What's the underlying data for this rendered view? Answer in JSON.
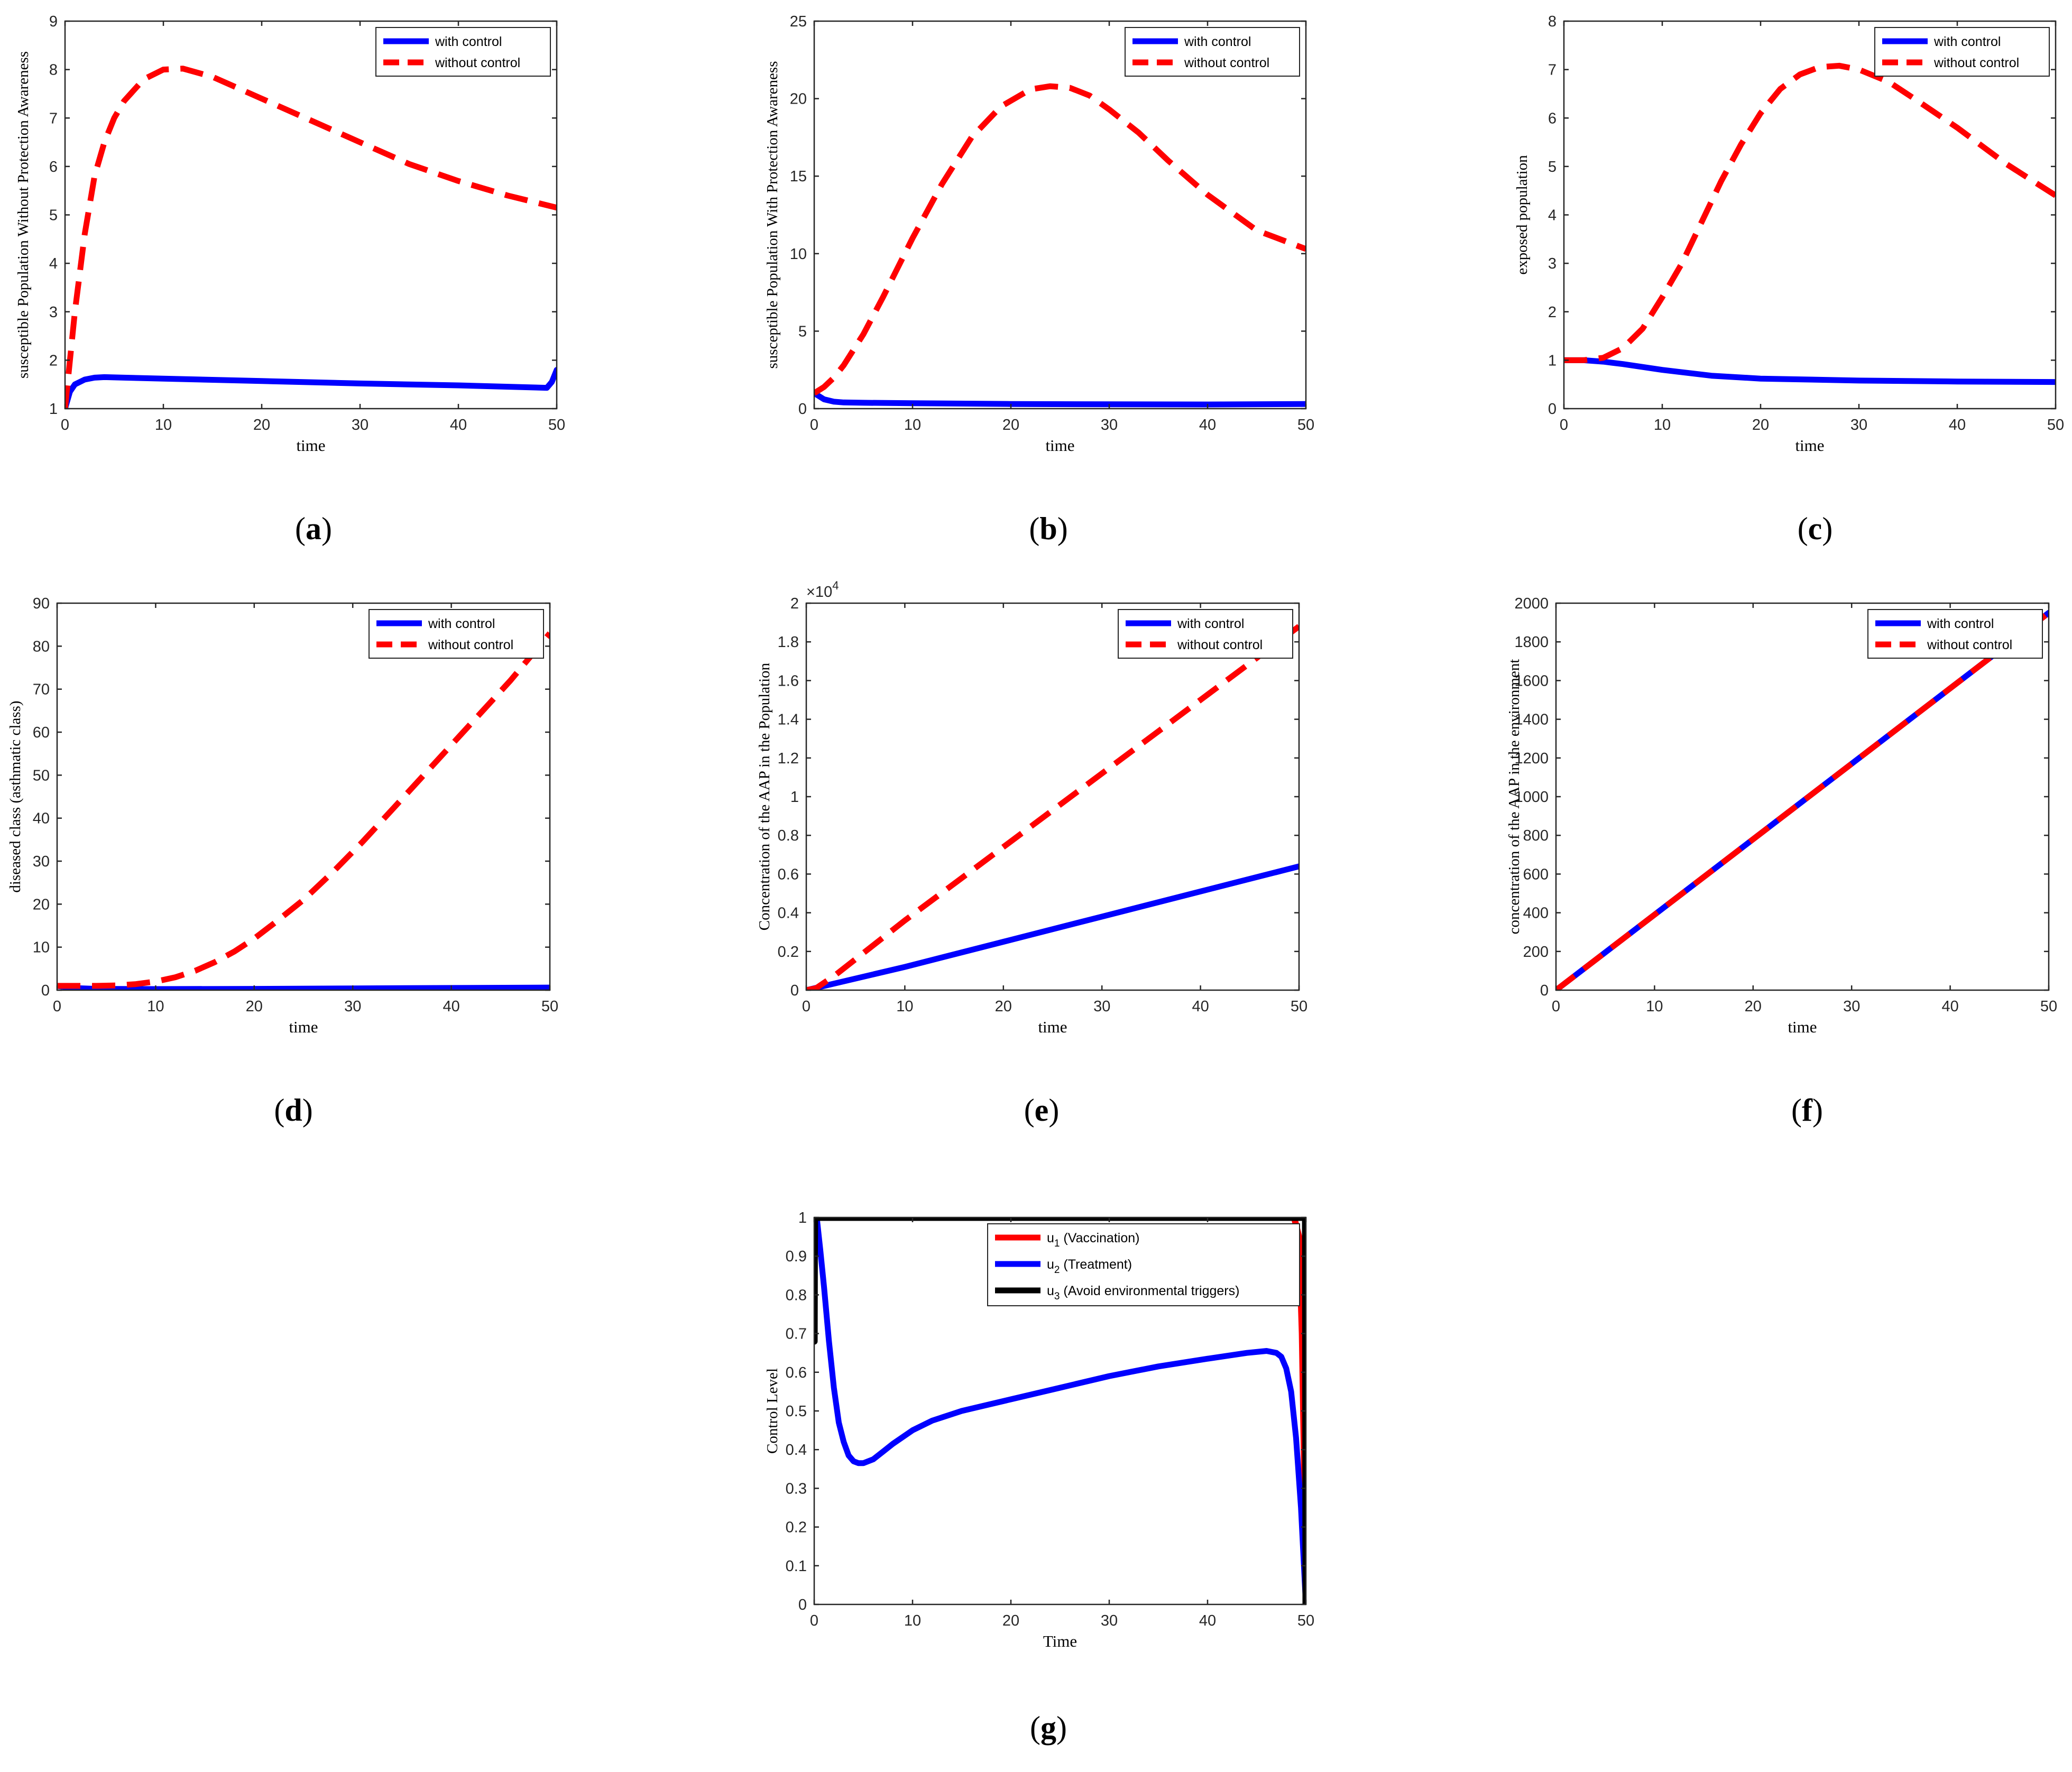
{
  "figure": {
    "colors": {
      "with": "#0000ff",
      "without": "#ff0000",
      "u3": "#000000",
      "axis": "#262626"
    }
  },
  "chart_data": [
    {
      "id": "a",
      "type": "line",
      "caption_letter": "a",
      "xlabel": "time",
      "ylabel": "susceptible Population Without Protection Awareness",
      "xlim": [
        0,
        50
      ],
      "ylim": [
        1,
        9
      ],
      "xticks": [
        "0",
        "10",
        "20",
        "30",
        "40",
        "50"
      ],
      "yticks": [
        "1",
        "2",
        "3",
        "4",
        "5",
        "6",
        "7",
        "8",
        "9"
      ],
      "legend": {
        "placement": "top-right",
        "entries": [
          "with control",
          "without control"
        ]
      },
      "series": [
        {
          "name": "with control",
          "color": "#0000ff",
          "style": "solid",
          "x": [
            0,
            0.5,
            1,
            2,
            3,
            4,
            6,
            10,
            20,
            30,
            40,
            49,
            49.5,
            50
          ],
          "y": [
            1.0,
            1.35,
            1.5,
            1.6,
            1.64,
            1.65,
            1.64,
            1.62,
            1.57,
            1.52,
            1.48,
            1.43,
            1.55,
            1.8
          ]
        },
        {
          "name": "without control",
          "color": "#ff0000",
          "style": "dashed",
          "x": [
            0,
            0.5,
            1,
            2,
            3,
            4,
            5,
            6,
            8,
            10,
            12,
            15,
            20,
            25,
            30,
            35,
            40,
            45,
            50
          ],
          "y": [
            1.0,
            2.0,
            3.0,
            4.6,
            5.8,
            6.5,
            7.0,
            7.35,
            7.8,
            8.0,
            8.02,
            7.85,
            7.4,
            6.95,
            6.5,
            6.05,
            5.7,
            5.4,
            5.15
          ]
        }
      ]
    },
    {
      "id": "b",
      "type": "line",
      "caption_letter": "b",
      "xlabel": "time",
      "ylabel": "susceptible Population With Protection Awareness",
      "xlim": [
        0,
        50
      ],
      "ylim": [
        0,
        25
      ],
      "xticks": [
        "0",
        "10",
        "20",
        "30",
        "40",
        "50"
      ],
      "yticks": [
        "0",
        "5",
        "10",
        "15",
        "20",
        "25"
      ],
      "legend": {
        "placement": "top-right",
        "entries": [
          "with control",
          "without control"
        ]
      },
      "series": [
        {
          "name": "with control",
          "color": "#0000ff",
          "style": "solid",
          "x": [
            0,
            0.5,
            1,
            2,
            3,
            5,
            10,
            20,
            30,
            40,
            50
          ],
          "y": [
            1.0,
            0.8,
            0.6,
            0.45,
            0.4,
            0.38,
            0.35,
            0.3,
            0.28,
            0.27,
            0.3
          ]
        },
        {
          "name": "without control",
          "color": "#ff0000",
          "style": "dashed",
          "x": [
            0,
            1,
            2,
            3,
            5,
            7,
            10,
            13,
            16,
            19,
            22,
            24,
            26,
            28,
            30,
            33,
            36,
            40,
            45,
            50
          ],
          "y": [
            1.0,
            1.4,
            2.0,
            2.8,
            4.8,
            7.2,
            11.0,
            14.5,
            17.5,
            19.5,
            20.6,
            20.8,
            20.7,
            20.2,
            19.3,
            17.8,
            16.0,
            13.8,
            11.5,
            10.3
          ]
        }
      ]
    },
    {
      "id": "c",
      "type": "line",
      "caption_letter": "c",
      "xlabel": "time",
      "ylabel": "exposed population",
      "xlim": [
        0,
        50
      ],
      "ylim": [
        0,
        8
      ],
      "xticks": [
        "0",
        "10",
        "20",
        "30",
        "40",
        "50"
      ],
      "yticks": [
        "0",
        "1",
        "2",
        "3",
        "4",
        "5",
        "6",
        "7",
        "8"
      ],
      "legend": {
        "placement": "top-right",
        "entries": [
          "with control",
          "without control"
        ]
      },
      "series": [
        {
          "name": "with control",
          "color": "#0000ff",
          "style": "solid",
          "x": [
            0,
            2,
            4,
            6,
            8,
            10,
            15,
            20,
            25,
            30,
            40,
            50
          ],
          "y": [
            1.0,
            1.0,
            0.97,
            0.92,
            0.86,
            0.8,
            0.68,
            0.62,
            0.6,
            0.58,
            0.56,
            0.55
          ]
        },
        {
          "name": "without control",
          "color": "#ff0000",
          "style": "dashed",
          "x": [
            0,
            2,
            4,
            6,
            8,
            10,
            12,
            14,
            16,
            18,
            20,
            22,
            24,
            26,
            28,
            30,
            33,
            36,
            40,
            45,
            50
          ],
          "y": [
            1.0,
            1.0,
            1.05,
            1.25,
            1.65,
            2.3,
            3.0,
            3.85,
            4.7,
            5.45,
            6.1,
            6.6,
            6.9,
            7.05,
            7.08,
            7.0,
            6.75,
            6.35,
            5.8,
            5.05,
            4.4
          ]
        }
      ]
    },
    {
      "id": "d",
      "type": "line",
      "caption_letter": "d",
      "xlabel": "time",
      "ylabel": "diseased class (asthmatic class)",
      "xlim": [
        0,
        50
      ],
      "ylim": [
        0,
        90
      ],
      "xticks": [
        "0",
        "10",
        "20",
        "30",
        "40",
        "50"
      ],
      "yticks": [
        "0",
        "10",
        "20",
        "30",
        "40",
        "50",
        "60",
        "70",
        "80",
        "90"
      ],
      "legend": {
        "placement": "top-right",
        "entries": [
          "with control",
          "without control"
        ]
      },
      "series": [
        {
          "name": "with control",
          "color": "#0000ff",
          "style": "solid",
          "x": [
            0,
            1,
            2,
            4,
            10,
            20,
            30,
            40,
            50
          ],
          "y": [
            1.0,
            0.7,
            0.45,
            0.3,
            0.25,
            0.3,
            0.4,
            0.5,
            0.6
          ]
        },
        {
          "name": "without control",
          "color": "#ff0000",
          "style": "dashed",
          "x": [
            0,
            2,
            4,
            6,
            8,
            10,
            12,
            14,
            16,
            18,
            20,
            22,
            25,
            28,
            31,
            34,
            37,
            40,
            43,
            46,
            48,
            50
          ],
          "y": [
            1.0,
            1.0,
            1.0,
            1.1,
            1.4,
            2.0,
            3.0,
            4.5,
            6.5,
            9.0,
            12.0,
            15.5,
            21.0,
            27.5,
            34.5,
            42.0,
            49.5,
            57.0,
            64.5,
            72.0,
            77.5,
            83.0
          ]
        }
      ]
    },
    {
      "id": "e",
      "type": "line",
      "caption_letter": "e",
      "xlabel": "time",
      "ylabel": "Concentration of the AAP in the Population",
      "xlim": [
        0,
        50
      ],
      "ylim": [
        0,
        2
      ],
      "exponent_base": "×10",
      "exponent_power": "4",
      "xticks": [
        "0",
        "10",
        "20",
        "30",
        "40",
        "50"
      ],
      "yticks": [
        "0",
        "0.2",
        "0.4",
        "0.6",
        "0.8",
        "1",
        "1.2",
        "1.4",
        "1.6",
        "1.8",
        "2"
      ],
      "legend": {
        "placement": "top-right",
        "entries": [
          "with control",
          "without control"
        ]
      },
      "series": [
        {
          "name": "with control",
          "color": "#0000ff",
          "style": "solid",
          "x": [
            0,
            10,
            20,
            30,
            40,
            50
          ],
          "y": [
            0,
            0.12,
            0.25,
            0.38,
            0.51,
            0.64
          ]
        },
        {
          "name": "without control",
          "color": "#ff0000",
          "style": "dashed",
          "x": [
            0,
            1,
            3,
            10,
            20,
            30,
            40,
            50
          ],
          "y": [
            0,
            0.01,
            0.08,
            0.36,
            0.74,
            1.12,
            1.5,
            1.88
          ]
        }
      ]
    },
    {
      "id": "f",
      "type": "line",
      "caption_letter": "f",
      "xlabel": "time",
      "ylabel": "concentration of the AAP in the environment",
      "xlim": [
        0,
        50
      ],
      "ylim": [
        0,
        2000
      ],
      "xticks": [
        "0",
        "10",
        "20",
        "30",
        "40",
        "50"
      ],
      "yticks": [
        "0",
        "200",
        "400",
        "600",
        "800",
        "1000",
        "1200",
        "1400",
        "1600",
        "1800",
        "2000"
      ],
      "legend": {
        "placement": "top-right",
        "entries": [
          "with control",
          "without control"
        ]
      },
      "series": [
        {
          "name": "with control",
          "color": "#0000ff",
          "style": "solid",
          "x": [
            0,
            50
          ],
          "y": [
            0,
            1950
          ]
        },
        {
          "name": "without control",
          "color": "#ff0000",
          "style": "dashed",
          "x": [
            0,
            50
          ],
          "y": [
            0,
            1950
          ]
        }
      ]
    },
    {
      "id": "g",
      "type": "line",
      "caption_letter": "g",
      "xlabel": "Time",
      "ylabel": "Control Level",
      "xlim": [
        0,
        50
      ],
      "ylim": [
        0,
        1
      ],
      "xticks": [
        "0",
        "10",
        "20",
        "30",
        "40",
        "50"
      ],
      "yticks": [
        "0",
        "0.1",
        "0.2",
        "0.3",
        "0.4",
        "0.5",
        "0.6",
        "0.7",
        "0.8",
        "0.9",
        "1"
      ],
      "legend": {
        "placement": "top-right",
        "entries": [
          "u1 (Vaccination)",
          "u2 (Treatment)",
          "u3 (Avoid environmental triggers)"
        ]
      },
      "legend_rich": [
        {
          "sym": "u",
          "sub": "1",
          "text": " (Vaccination)"
        },
        {
          "sym": "u",
          "sub": "2",
          "text": " (Treatment)"
        },
        {
          "sym": "u",
          "sub": "3",
          "text": " (Avoid environmental triggers)"
        }
      ],
      "series": [
        {
          "name": "u1 (Vaccination)",
          "color": "#ff0000",
          "style": "solid",
          "x": [
            0,
            0.05,
            48.8,
            49.3,
            49.6,
            49.8,
            50
          ],
          "y": [
            1.0,
            1.0,
            1.0,
            0.95,
            0.7,
            0.4,
            0.0
          ]
        },
        {
          "name": "u2 (Treatment)",
          "color": "#0000ff",
          "style": "solid",
          "x": [
            0,
            0.3,
            0.6,
            1,
            1.5,
            2,
            2.5,
            3,
            3.5,
            4,
            4.5,
            5,
            6,
            7,
            8,
            10,
            12,
            15,
            20,
            25,
            30,
            35,
            40,
            44,
            46,
            47,
            47.5,
            48,
            48.5,
            49,
            49.5,
            50
          ],
          "y": [
            1.0,
            0.99,
            0.92,
            0.82,
            0.68,
            0.56,
            0.47,
            0.42,
            0.385,
            0.37,
            0.365,
            0.365,
            0.375,
            0.395,
            0.415,
            0.45,
            0.475,
            0.5,
            0.53,
            0.56,
            0.59,
            0.615,
            0.635,
            0.65,
            0.655,
            0.65,
            0.64,
            0.61,
            0.55,
            0.43,
            0.25,
            0.0
          ]
        },
        {
          "name": "u3 (Avoid environmental triggers)",
          "color": "#000000",
          "style": "solid",
          "x": [
            0,
            0.02,
            0.05,
            49.95,
            49.98,
            50
          ],
          "y": [
            0.68,
            0.9,
            1.0,
            1.0,
            0.5,
            0.0
          ]
        }
      ]
    }
  ]
}
